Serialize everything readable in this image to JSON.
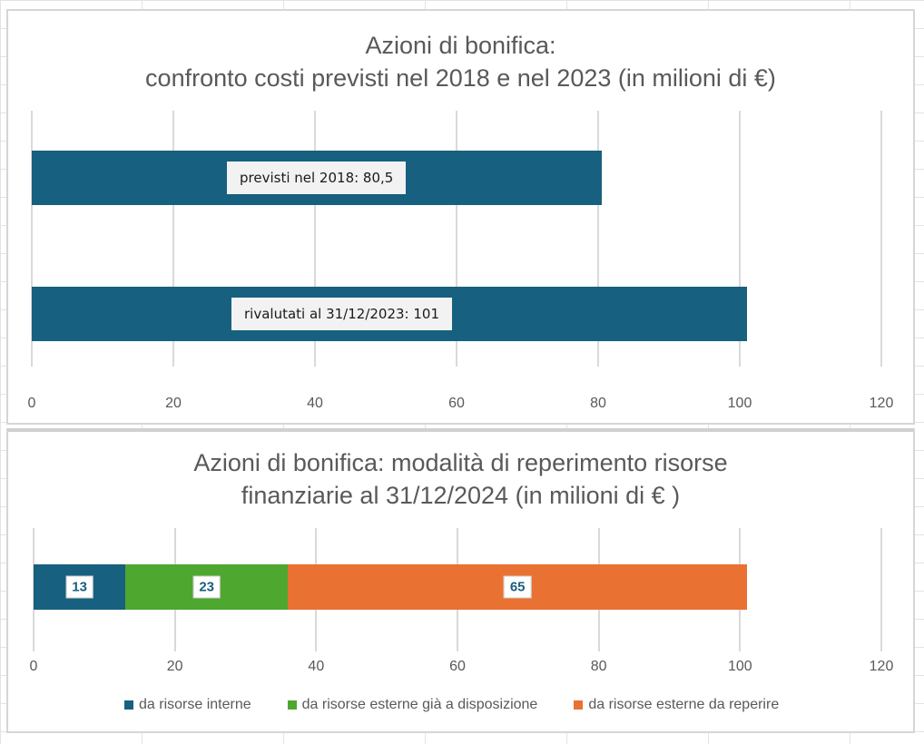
{
  "chart1": {
    "title_line1": "Azioni di bonifica:",
    "title_line2": "confronto costi previsti nel 2018 e nel 2023  (in milioni di €)",
    "bar_color": "#17607f",
    "bars": [
      {
        "label": "previsti nel 2018: 80,5",
        "value": 80.5
      },
      {
        "label": "rivalutati al 31/12/2023: 101",
        "value": 101
      }
    ],
    "ticks": [
      "0",
      "20",
      "40",
      "60",
      "80",
      "100",
      "120"
    ]
  },
  "chart2": {
    "title_line1": "Azioni di bonifica: modalità di reperimento risorse",
    "title_line2": "finanziarie al 31/12/2024 (in milioni di € )",
    "segments": [
      {
        "label": "13",
        "value": 13,
        "color": "#17607f"
      },
      {
        "label": "23",
        "value": 23,
        "color": "#4ea72e"
      },
      {
        "label": "65",
        "value": 65,
        "color": "#e97132"
      }
    ],
    "ticks": [
      "0",
      "20",
      "40",
      "60",
      "80",
      "100",
      "120"
    ],
    "legend": [
      {
        "label": "da risorse interne",
        "color": "#17607f"
      },
      {
        "label": "da risorse esterne già a disposizione",
        "color": "#4ea72e"
      },
      {
        "label": "da risorse esterne da reperire",
        "color": "#e97132"
      }
    ]
  },
  "chart_data": [
    {
      "type": "bar",
      "orientation": "horizontal",
      "title": "Azioni di bonifica: confronto costi previsti nel 2018 e nel 2023 (in milioni di €)",
      "categories": [
        "previsti nel 2018",
        "rivalutati al 31/12/2023"
      ],
      "values": [
        80.5,
        101
      ],
      "data_labels": [
        "previsti nel 2018: 80,5",
        "rivalutati al 31/12/2023: 101"
      ],
      "xlabel": "",
      "ylabel": "",
      "xlim": [
        0,
        120
      ],
      "xticks": [
        0,
        20,
        40,
        60,
        80,
        100,
        120
      ],
      "grid": true,
      "color": "#17607f"
    },
    {
      "type": "bar",
      "orientation": "horizontal",
      "stacked": true,
      "title": "Azioni di bonifica: modalità di reperimento risorse finanziarie al 31/12/2024 (in milioni di € )",
      "categories": [
        ""
      ],
      "series": [
        {
          "name": "da risorse interne",
          "values": [
            13
          ],
          "color": "#17607f"
        },
        {
          "name": "da risorse esterne già a disposizione",
          "values": [
            23
          ],
          "color": "#4ea72e"
        },
        {
          "name": "da risorse esterne da reperire",
          "values": [
            65
          ],
          "color": "#e97132"
        }
      ],
      "xlim": [
        0,
        120
      ],
      "xticks": [
        0,
        20,
        40,
        60,
        80,
        100,
        120
      ],
      "grid": true,
      "legend_position": "bottom"
    }
  ]
}
